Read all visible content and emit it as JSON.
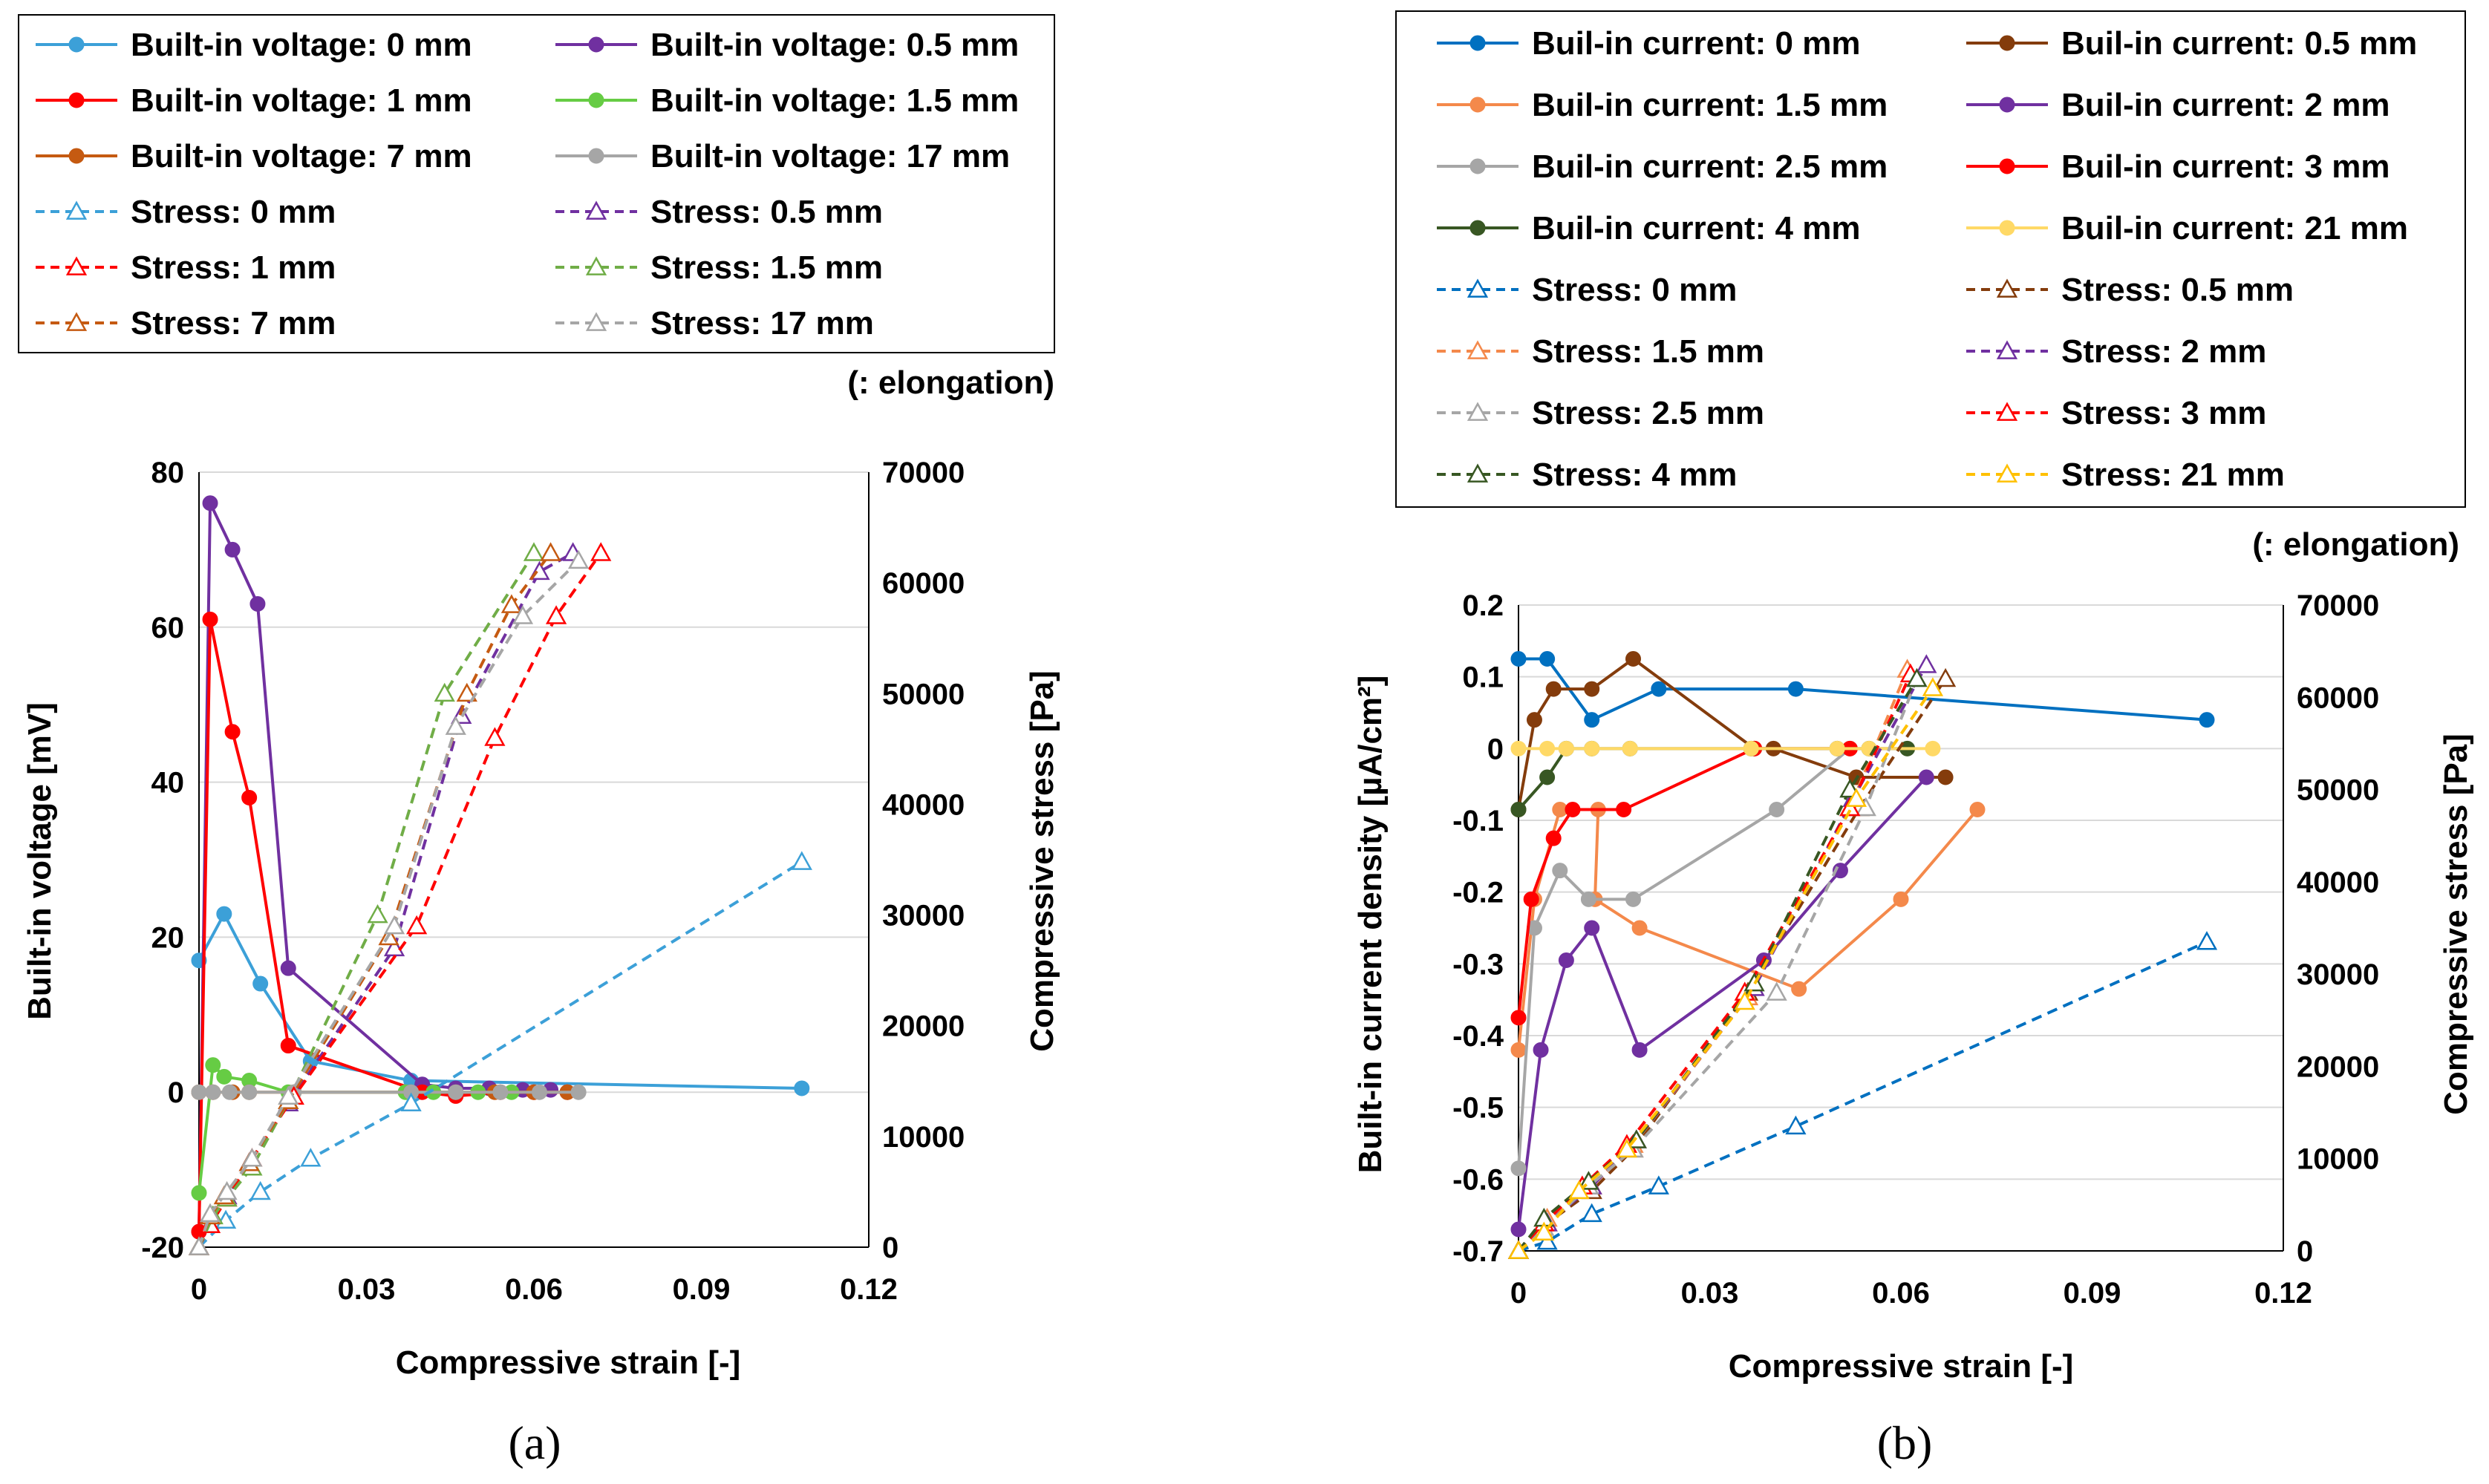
{
  "chart_data": [
    {
      "id": "a",
      "type": "line",
      "caption": "(a)",
      "xlabel": "Compressive strain   [-]",
      "ylabel": "Built-in voltage   [mV]",
      "y2label": "Compressive stress   [Pa]",
      "note": "(: elongation)",
      "xlim": [
        0,
        0.12
      ],
      "ylim": [
        -20,
        80
      ],
      "y2lim": [
        0,
        70000
      ],
      "xticks": [
        "0",
        "0.03",
        "0.06",
        "0.09",
        "0.12"
      ],
      "yticks": [
        "-20",
        "0",
        "20",
        "40",
        "60",
        "80"
      ],
      "y2ticks": [
        "0",
        "10000",
        "20000",
        "30000",
        "40000",
        "50000",
        "60000",
        "70000"
      ],
      "series": [
        {
          "name": "Built-in voltage: 0 mm",
          "axis": "y",
          "color": "#3ca0d8",
          "dash": false,
          "marker": "circle",
          "x": [
            0,
            0.0045,
            0.011,
            0.02,
            0.038,
            0.108
          ],
          "y": [
            17,
            23,
            14,
            4,
            1.5,
            0.5
          ]
        },
        {
          "name": "Built-in voltage: 0.5 mm",
          "axis": "y",
          "color": "#7030a0",
          "dash": false,
          "marker": "circle",
          "x": [
            0,
            0.002,
            0.006,
            0.0105,
            0.016,
            0.04,
            0.046,
            0.052,
            0.058,
            0.063
          ],
          "y": [
            -18,
            76,
            70,
            63,
            16,
            1,
            0.5,
            0.5,
            0.3,
            0.3
          ]
        },
        {
          "name": "Built-in voltage: 1 mm",
          "axis": "y",
          "color": "#ff0000",
          "dash": false,
          "marker": "circle",
          "x": [
            0,
            0.002,
            0.006,
            0.009,
            0.016,
            0.04,
            0.046,
            0.054,
            0.06,
            0.066
          ],
          "y": [
            -18,
            61,
            46.5,
            38,
            6,
            0,
            -0.5,
            0,
            0,
            0
          ]
        },
        {
          "name": "Built-in voltage: 1.5 mm",
          "axis": "y",
          "color": "#66cc44",
          "dash": false,
          "marker": "circle",
          "x": [
            0,
            0.0025,
            0.0045,
            0.009,
            0.016,
            0.037,
            0.042,
            0.05,
            0.056
          ],
          "y": [
            -13,
            3.5,
            2,
            1.5,
            0,
            0,
            0,
            0,
            0
          ]
        },
        {
          "name": "Built-in voltage: 7 mm",
          "axis": "y",
          "color": "#c55a11",
          "dash": false,
          "marker": "circle",
          "x": [
            0,
            0.0025,
            0.006,
            0.009,
            0.017,
            0.038,
            0.046,
            0.053,
            0.06,
            0.066
          ],
          "y": [
            0,
            0,
            0,
            0,
            0,
            0,
            0,
            0,
            0,
            0
          ]
        },
        {
          "name": "Built-in voltage: 17 mm",
          "axis": "y",
          "color": "#a6a6a6",
          "dash": false,
          "marker": "circle",
          "x": [
            0,
            0.0025,
            0.0055,
            0.009,
            0.017,
            0.038,
            0.046,
            0.054,
            0.061,
            0.068
          ],
          "y": [
            0,
            0,
            0,
            0,
            0,
            0,
            0,
            0,
            0,
            0
          ]
        },
        {
          "name": "Stress: 0 mm",
          "axis": "y2",
          "color": "#3ca0d8",
          "dash": true,
          "marker": "triangle",
          "x": [
            0,
            0.0048,
            0.011,
            0.02,
            0.038,
            0.108
          ],
          "y": [
            0,
            2400,
            5000,
            8000,
            13000,
            34800
          ]
        },
        {
          "name": "Stress: 0.5 mm",
          "axis": "y2",
          "color": "#7030a0",
          "dash": true,
          "marker": "triangle",
          "x": [
            0,
            0.002,
            0.005,
            0.009,
            0.016,
            0.035,
            0.047,
            0.061,
            0.067
          ],
          "y": [
            0,
            2800,
            4600,
            7600,
            13000,
            27000,
            48000,
            61000,
            62700
          ]
        },
        {
          "name": "Stress: 1 mm",
          "axis": "y2",
          "color": "#ff0000",
          "dash": true,
          "marker": "triangle",
          "x": [
            0,
            0.002,
            0.005,
            0.0095,
            0.017,
            0.039,
            0.053,
            0.064,
            0.072
          ],
          "y": [
            0,
            2000,
            4400,
            8000,
            13600,
            29000,
            46000,
            57000,
            62700
          ]
        },
        {
          "name": "Stress: 1.5 mm",
          "axis": "y2",
          "color": "#70ad47",
          "dash": true,
          "marker": "triangle",
          "x": [
            0,
            0.0025,
            0.005,
            0.0095,
            0.016,
            0.032,
            0.044,
            0.06
          ],
          "y": [
            0,
            2800,
            4400,
            7200,
            13200,
            30000,
            50000,
            62700
          ]
        },
        {
          "name": "Stress: 7 mm",
          "axis": "y2",
          "color": "#c55a11",
          "dash": true,
          "marker": "triangle",
          "x": [
            0,
            0.002,
            0.0045,
            0.009,
            0.016,
            0.034,
            0.048,
            0.056,
            0.063
          ],
          "y": [
            0,
            2800,
            4600,
            7600,
            13200,
            28000,
            50000,
            58000,
            62700
          ]
        },
        {
          "name": "Stress: 17 mm",
          "axis": "y2",
          "color": "#a6a6a6",
          "dash": true,
          "marker": "triangle",
          "x": [
            0,
            0.002,
            0.005,
            0.0095,
            0.016,
            0.035,
            0.046,
            0.058,
            0.068
          ],
          "y": [
            0,
            3000,
            5000,
            8000,
            13600,
            29000,
            47000,
            57000,
            62000
          ]
        }
      ]
    },
    {
      "id": "b",
      "type": "line",
      "caption": "(b)",
      "xlabel": "Compressive strain   [-]",
      "ylabel": "Built-in current density   [µA/cm²]",
      "y2label": "Compressive stress   [Pa]",
      "note": "(: elongation)",
      "xlim": [
        0,
        0.12
      ],
      "ylim": [
        -0.7,
        0.2
      ],
      "y2lim": [
        0,
        70000
      ],
      "xticks": [
        "0",
        "0.03",
        "0.06",
        "0.09",
        "0.12"
      ],
      "yticks": [
        "-0.7",
        "-0.6",
        "-0.5",
        "-0.4",
        "-0.3",
        "-0.2",
        "-0.1",
        "0",
        "0.1",
        "0.2"
      ],
      "y2ticks": [
        "0",
        "10000",
        "20000",
        "30000",
        "40000",
        "50000",
        "60000",
        "70000"
      ],
      "series": [
        {
          "name": "Buil-in current: 0 mm",
          "axis": "y",
          "color": "#0070c0",
          "dash": false,
          "marker": "circle",
          "x": [
            0,
            0.0045,
            0.0115,
            0.022,
            0.0435,
            0.108
          ],
          "y": [
            0.125,
            0.125,
            0.04,
            0.083,
            0.083,
            0.04
          ]
        },
        {
          "name": "Buil-in current: 0.5 mm",
          "axis": "y",
          "color": "#843c0c",
          "dash": false,
          "marker": "circle",
          "x": [
            0,
            0.0025,
            0.0055,
            0.0115,
            0.018,
            0.037,
            0.04,
            0.053,
            0.067
          ],
          "y": [
            -0.085,
            0.04,
            0.083,
            0.083,
            0.125,
            0,
            0,
            -0.04,
            -0.04
          ]
        },
        {
          "name": "Buil-in current: 1.5 mm",
          "axis": "y",
          "color": "#f4894b",
          "dash": false,
          "marker": "circle",
          "x": [
            0,
            0.0025,
            0.0065,
            0.0125,
            0.012,
            0.019,
            0.044,
            0.06,
            0.072
          ],
          "y": [
            -0.42,
            -0.21,
            -0.085,
            -0.085,
            -0.21,
            -0.25,
            -0.335,
            -0.21,
            -0.085
          ]
        },
        {
          "name": "Buil-in current: 2 mm",
          "axis": "y",
          "color": "#7030a0",
          "dash": false,
          "marker": "circle",
          "x": [
            0,
            0.0035,
            0.0075,
            0.0115,
            0.019,
            0.0385,
            0.0505,
            0.064
          ],
          "y": [
            -0.67,
            -0.42,
            -0.295,
            -0.25,
            -0.42,
            -0.295,
            -0.17,
            -0.04
          ]
        },
        {
          "name": "Buil-in current: 2.5 mm",
          "axis": "y",
          "color": "#a6a6a6",
          "dash": false,
          "marker": "circle",
          "x": [
            0,
            0.0025,
            0.0065,
            0.011,
            0.018,
            0.0405,
            0.052
          ],
          "y": [
            -0.585,
            -0.25,
            -0.17,
            -0.21,
            -0.21,
            -0.085,
            0
          ]
        },
        {
          "name": "Buil-in current: 3 mm",
          "axis": "y",
          "color": "#ff0000",
          "dash": false,
          "marker": "circle",
          "x": [
            0,
            0.002,
            0.0055,
            0.0085,
            0.0165,
            0.037,
            0.052
          ],
          "y": [
            -0.375,
            -0.21,
            -0.125,
            -0.085,
            -0.085,
            0,
            0
          ]
        },
        {
          "name": "Buil-in current: 4 mm",
          "axis": "y",
          "color": "#385723",
          "dash": false,
          "marker": "circle",
          "x": [
            0,
            0.0045,
            0.0075,
            0.0115,
            0.0175,
            0.0365,
            0.05,
            0.055,
            0.061
          ],
          "y": [
            -0.085,
            -0.04,
            0,
            0,
            0,
            0,
            0,
            0,
            0
          ]
        },
        {
          "name": "Buil-in current: 21 mm",
          "axis": "y",
          "color": "#ffd966",
          "dash": false,
          "marker": "circle",
          "x": [
            0,
            0.0045,
            0.0075,
            0.0115,
            0.0175,
            0.0365,
            0.05,
            0.055,
            0.065
          ],
          "y": [
            0,
            0,
            0,
            0,
            0,
            0,
            0,
            0,
            0
          ]
        },
        {
          "name": "Stress: 0 mm",
          "axis": "y2",
          "color": "#0070c0",
          "dash": true,
          "marker": "triangle",
          "x": [
            0,
            0.0045,
            0.0115,
            0.022,
            0.0435,
            0.108
          ],
          "y": [
            0,
            1000,
            4000,
            7000,
            13500,
            33500
          ]
        },
        {
          "name": "Stress: 0.5 mm",
          "axis": "y2",
          "color": "#843c0c",
          "dash": true,
          "marker": "triangle",
          "x": [
            0,
            0.0045,
            0.0115,
            0.018,
            0.036,
            0.0535,
            0.067
          ],
          "y": [
            0,
            3000,
            6500,
            11000,
            28000,
            48000,
            62000
          ]
        },
        {
          "name": "Stress: 1.5 mm",
          "axis": "y2",
          "color": "#f4894b",
          "dash": true,
          "marker": "triangle",
          "x": [
            0,
            0.0045,
            0.0115,
            0.018,
            0.036,
            0.052,
            0.061
          ],
          "y": [
            0,
            3500,
            7000,
            11500,
            27500,
            48000,
            63000
          ]
        },
        {
          "name": "Stress: 2 mm",
          "axis": "y2",
          "color": "#7030a0",
          "dash": true,
          "marker": "triangle",
          "x": [
            0,
            0.0045,
            0.0115,
            0.0185,
            0.037,
            0.0525,
            0.064
          ],
          "y": [
            0,
            3000,
            7000,
            12000,
            28500,
            49000,
            63500
          ]
        },
        {
          "name": "Stress: 2.5 mm",
          "axis": "y2",
          "color": "#a6a6a6",
          "dash": true,
          "marker": "triangle",
          "x": [
            0,
            0.004,
            0.011,
            0.018,
            0.0405,
            0.0545,
            0.0625
          ],
          "y": [
            0,
            2500,
            7000,
            11000,
            28000,
            48000,
            62000
          ]
        },
        {
          "name": "Stress: 3 mm",
          "axis": "y2",
          "color": "#ff0000",
          "dash": true,
          "marker": "triangle",
          "x": [
            0,
            0.004,
            0.01,
            0.017,
            0.0355,
            0.052,
            0.0615
          ],
          "y": [
            0,
            3000,
            7000,
            11500,
            28000,
            48000,
            62500
          ]
        },
        {
          "name": "Stress: 4 mm",
          "axis": "y2",
          "color": "#385723",
          "dash": true,
          "marker": "triangle",
          "x": [
            0,
            0.004,
            0.011,
            0.0185,
            0.037,
            0.052,
            0.0625
          ],
          "y": [
            0,
            3500,
            7500,
            12000,
            29000,
            50000,
            62000
          ]
        },
        {
          "name": "Stress: 21 mm",
          "axis": "y2",
          "color": "#ffc000",
          "dash": true,
          "marker": "triangle",
          "x": [
            0,
            0.004,
            0.0095,
            0.017,
            0.0355,
            0.053,
            0.065
          ],
          "y": [
            0,
            2000,
            6500,
            11000,
            27000,
            49000,
            61000
          ]
        }
      ]
    }
  ]
}
